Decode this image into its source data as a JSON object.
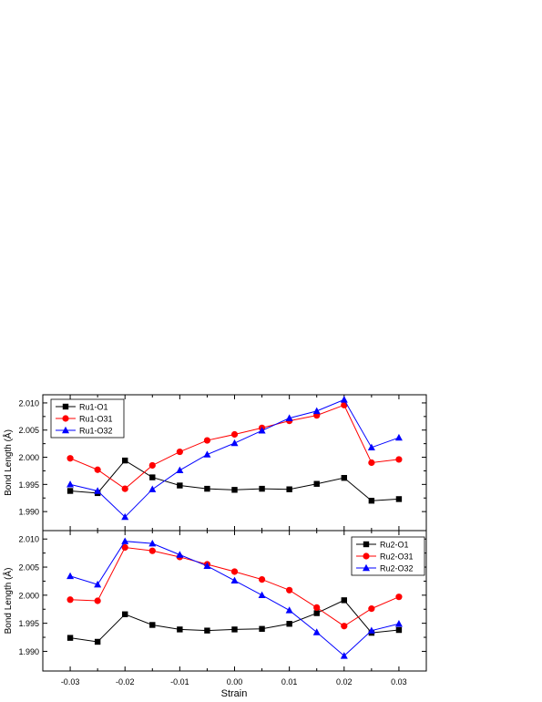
{
  "chart_data": [
    {
      "type": "line",
      "xlabel": "",
      "ylabel": "Bond Length (Å)",
      "xlim": [
        -0.035,
        0.035
      ],
      "ylim": [
        1.9865,
        2.0115
      ],
      "xticks": [
        -0.03,
        -0.02,
        -0.01,
        0.0,
        0.01,
        0.02,
        0.03
      ],
      "xtick_labels": [
        "-0.03",
        "-0.02",
        "-0.01",
        "0.00",
        "0.01",
        "0.02",
        "0.03"
      ],
      "yticks": [
        1.99,
        1.995,
        2.0,
        2.005,
        2.01
      ],
      "ytick_labels": [
        "1.990",
        "1.995",
        "2.000",
        "2.005",
        "2.010"
      ],
      "legend_position": "top-left",
      "x": [
        -0.03,
        -0.025,
        -0.02,
        -0.015,
        -0.01,
        -0.005,
        0.0,
        0.005,
        0.01,
        0.015,
        0.02,
        0.025,
        0.03
      ],
      "series": [
        {
          "name": "Ru1-O1",
          "color": "#000000",
          "marker": "square",
          "values": [
            1.9938,
            1.9934,
            1.9994,
            1.9963,
            1.9948,
            1.9942,
            1.994,
            1.9942,
            1.9941,
            1.9951,
            1.9962,
            1.992,
            1.9923
          ]
        },
        {
          "name": "Ru1-O31",
          "color": "#ff0000",
          "marker": "circle",
          "values": [
            1.9998,
            1.9977,
            1.9942,
            1.9985,
            2.001,
            2.0031,
            2.0042,
            2.0054,
            2.0067,
            2.0077,
            2.0096,
            1.999,
            1.9996
          ]
        },
        {
          "name": "Ru1-O32",
          "color": "#0000ff",
          "marker": "triangle",
          "values": [
            1.995,
            1.9938,
            1.989,
            1.9941,
            1.9976,
            2.0005,
            2.0026,
            2.0049,
            2.0072,
            2.0085,
            2.0106,
            2.0018,
            2.0036
          ]
        }
      ]
    },
    {
      "type": "line",
      "xlabel": "Strain",
      "ylabel": "Bond Length (Å)",
      "xlim": [
        -0.035,
        0.035
      ],
      "ylim": [
        1.9865,
        2.0115
      ],
      "xticks": [
        -0.03,
        -0.02,
        -0.01,
        0.0,
        0.01,
        0.02,
        0.03
      ],
      "xtick_labels": [
        "-0.03",
        "-0.02",
        "-0.01",
        "0.00",
        "0.01",
        "0.02",
        "0.03"
      ],
      "yticks": [
        1.99,
        1.995,
        2.0,
        2.005,
        2.01
      ],
      "ytick_labels": [
        "1.990",
        "1.995",
        "2.000",
        "2.005",
        "2.010"
      ],
      "legend_position": "top-right",
      "x": [
        -0.03,
        -0.025,
        -0.02,
        -0.015,
        -0.01,
        -0.005,
        0.0,
        0.005,
        0.01,
        0.015,
        0.02,
        0.025,
        0.03
      ],
      "series": [
        {
          "name": "Ru2-O1",
          "color": "#000000",
          "marker": "square",
          "values": [
            1.9924,
            1.9917,
            1.9966,
            1.9947,
            1.9939,
            1.9937,
            1.9939,
            1.994,
            1.9949,
            1.9968,
            1.9991,
            1.9933,
            1.9938
          ]
        },
        {
          "name": "Ru2-O31",
          "color": "#ff0000",
          "marker": "circle",
          "values": [
            1.9992,
            1.999,
            2.0085,
            2.0079,
            2.0068,
            2.0055,
            2.0042,
            2.0028,
            2.0009,
            1.9978,
            1.9945,
            1.9976,
            1.9997
          ]
        },
        {
          "name": "Ru2-O32",
          "color": "#0000ff",
          "marker": "triangle",
          "values": [
            2.0034,
            2.0019,
            2.0096,
            2.0092,
            2.0072,
            2.0052,
            2.0026,
            2.0,
            1.9973,
            1.9934,
            1.9892,
            1.9937,
            1.9949
          ]
        }
      ]
    }
  ]
}
